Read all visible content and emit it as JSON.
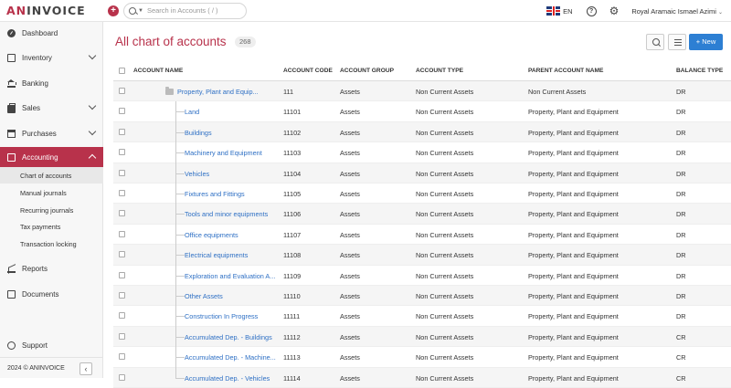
{
  "app": {
    "logo_an": "AN",
    "logo_invoice": "INVOICE"
  },
  "topbar": {
    "search_placeholder": "Search in Accounts ( / )",
    "lang": "EN",
    "help": "?",
    "user": "Royal Aramaic  Ismael Azimi"
  },
  "sidebar": {
    "items": [
      {
        "label": "Dashboard",
        "icon": "dashboard-icon"
      },
      {
        "label": "Inventory",
        "icon": "inventory-icon",
        "expandable": true
      },
      {
        "label": "Banking",
        "icon": "bank-icon"
      },
      {
        "label": "Sales",
        "icon": "sales-icon",
        "expandable": true
      },
      {
        "label": "Purchases",
        "icon": "purchases-icon",
        "expandable": true
      },
      {
        "label": "Accounting",
        "icon": "accounting-icon",
        "expandable": true,
        "active": true
      },
      {
        "label": "Reports",
        "icon": "reports-icon"
      },
      {
        "label": "Documents",
        "icon": "documents-icon"
      },
      {
        "label": "Support",
        "icon": "support-icon"
      }
    ],
    "subitems": [
      {
        "label": "Chart of accounts",
        "active": true
      },
      {
        "label": "Manual journals"
      },
      {
        "label": "Recurring journals"
      },
      {
        "label": "Tax payments"
      },
      {
        "label": "Transaction locking"
      }
    ],
    "footer": "2024 © ANINVOICE",
    "collapse": "‹"
  },
  "main": {
    "title": "All chart of accounts",
    "count": "268",
    "new_button": "+ New",
    "columns": {
      "name": "ACCOUNT NAME",
      "code": "ACCOUNT CODE",
      "group": "ACCOUNT GROUP",
      "type": "ACCOUNT TYPE",
      "parent": "PARENT ACCOUNT NAME",
      "balance": "BALANCE TYPE"
    },
    "rows": [
      {
        "name": "Property, Plant and Equip...",
        "code": "111",
        "group": "Assets",
        "type": "Non Current Assets",
        "parent": "Non Current Assets",
        "balance": "DR"
      },
      {
        "name": "Land",
        "code": "11101",
        "group": "Assets",
        "type": "Non Current Assets",
        "parent": "Property, Plant and Equipment",
        "balance": "DR"
      },
      {
        "name": "Buildings",
        "code": "11102",
        "group": "Assets",
        "type": "Non Current Assets",
        "parent": "Property, Plant and Equipment",
        "balance": "DR"
      },
      {
        "name": "Machinery and Equipment",
        "code": "11103",
        "group": "Assets",
        "type": "Non Current Assets",
        "parent": "Property, Plant and Equipment",
        "balance": "DR"
      },
      {
        "name": "Vehicles",
        "code": "11104",
        "group": "Assets",
        "type": "Non Current Assets",
        "parent": "Property, Plant and Equipment",
        "balance": "DR"
      },
      {
        "name": "Fixtures and Fittings",
        "code": "11105",
        "group": "Assets",
        "type": "Non Current Assets",
        "parent": "Property, Plant and Equipment",
        "balance": "DR"
      },
      {
        "name": "Tools and minor equipments",
        "code": "11106",
        "group": "Assets",
        "type": "Non Current Assets",
        "parent": "Property, Plant and Equipment",
        "balance": "DR"
      },
      {
        "name": "Office equipments",
        "code": "11107",
        "group": "Assets",
        "type": "Non Current Assets",
        "parent": "Property, Plant and Equipment",
        "balance": "DR"
      },
      {
        "name": "Electrical equipments",
        "code": "11108",
        "group": "Assets",
        "type": "Non Current Assets",
        "parent": "Property, Plant and Equipment",
        "balance": "DR"
      },
      {
        "name": "Exploration and Evaluation A...",
        "code": "11109",
        "group": "Assets",
        "type": "Non Current Assets",
        "parent": "Property, Plant and Equipment",
        "balance": "DR"
      },
      {
        "name": "Other Assets",
        "code": "11110",
        "group": "Assets",
        "type": "Non Current Assets",
        "parent": "Property, Plant and Equipment",
        "balance": "DR"
      },
      {
        "name": "Construction In Progress",
        "code": "11111",
        "group": "Assets",
        "type": "Non Current Assets",
        "parent": "Property, Plant and Equipment",
        "balance": "DR"
      },
      {
        "name": "Accumulated Dep. - Buildings",
        "code": "11112",
        "group": "Assets",
        "type": "Non Current Assets",
        "parent": "Property, Plant and Equipment",
        "balance": "CR"
      },
      {
        "name": "Accumulated Dep. - Machine...",
        "code": "11113",
        "group": "Assets",
        "type": "Non Current Assets",
        "parent": "Property, Plant and Equipment",
        "balance": "CR"
      },
      {
        "name": "Accumulated Dep. - Vehicles",
        "code": "11114",
        "group": "Assets",
        "type": "Non Current Assets",
        "parent": "Property, Plant and Equipment",
        "balance": "CR"
      }
    ]
  }
}
